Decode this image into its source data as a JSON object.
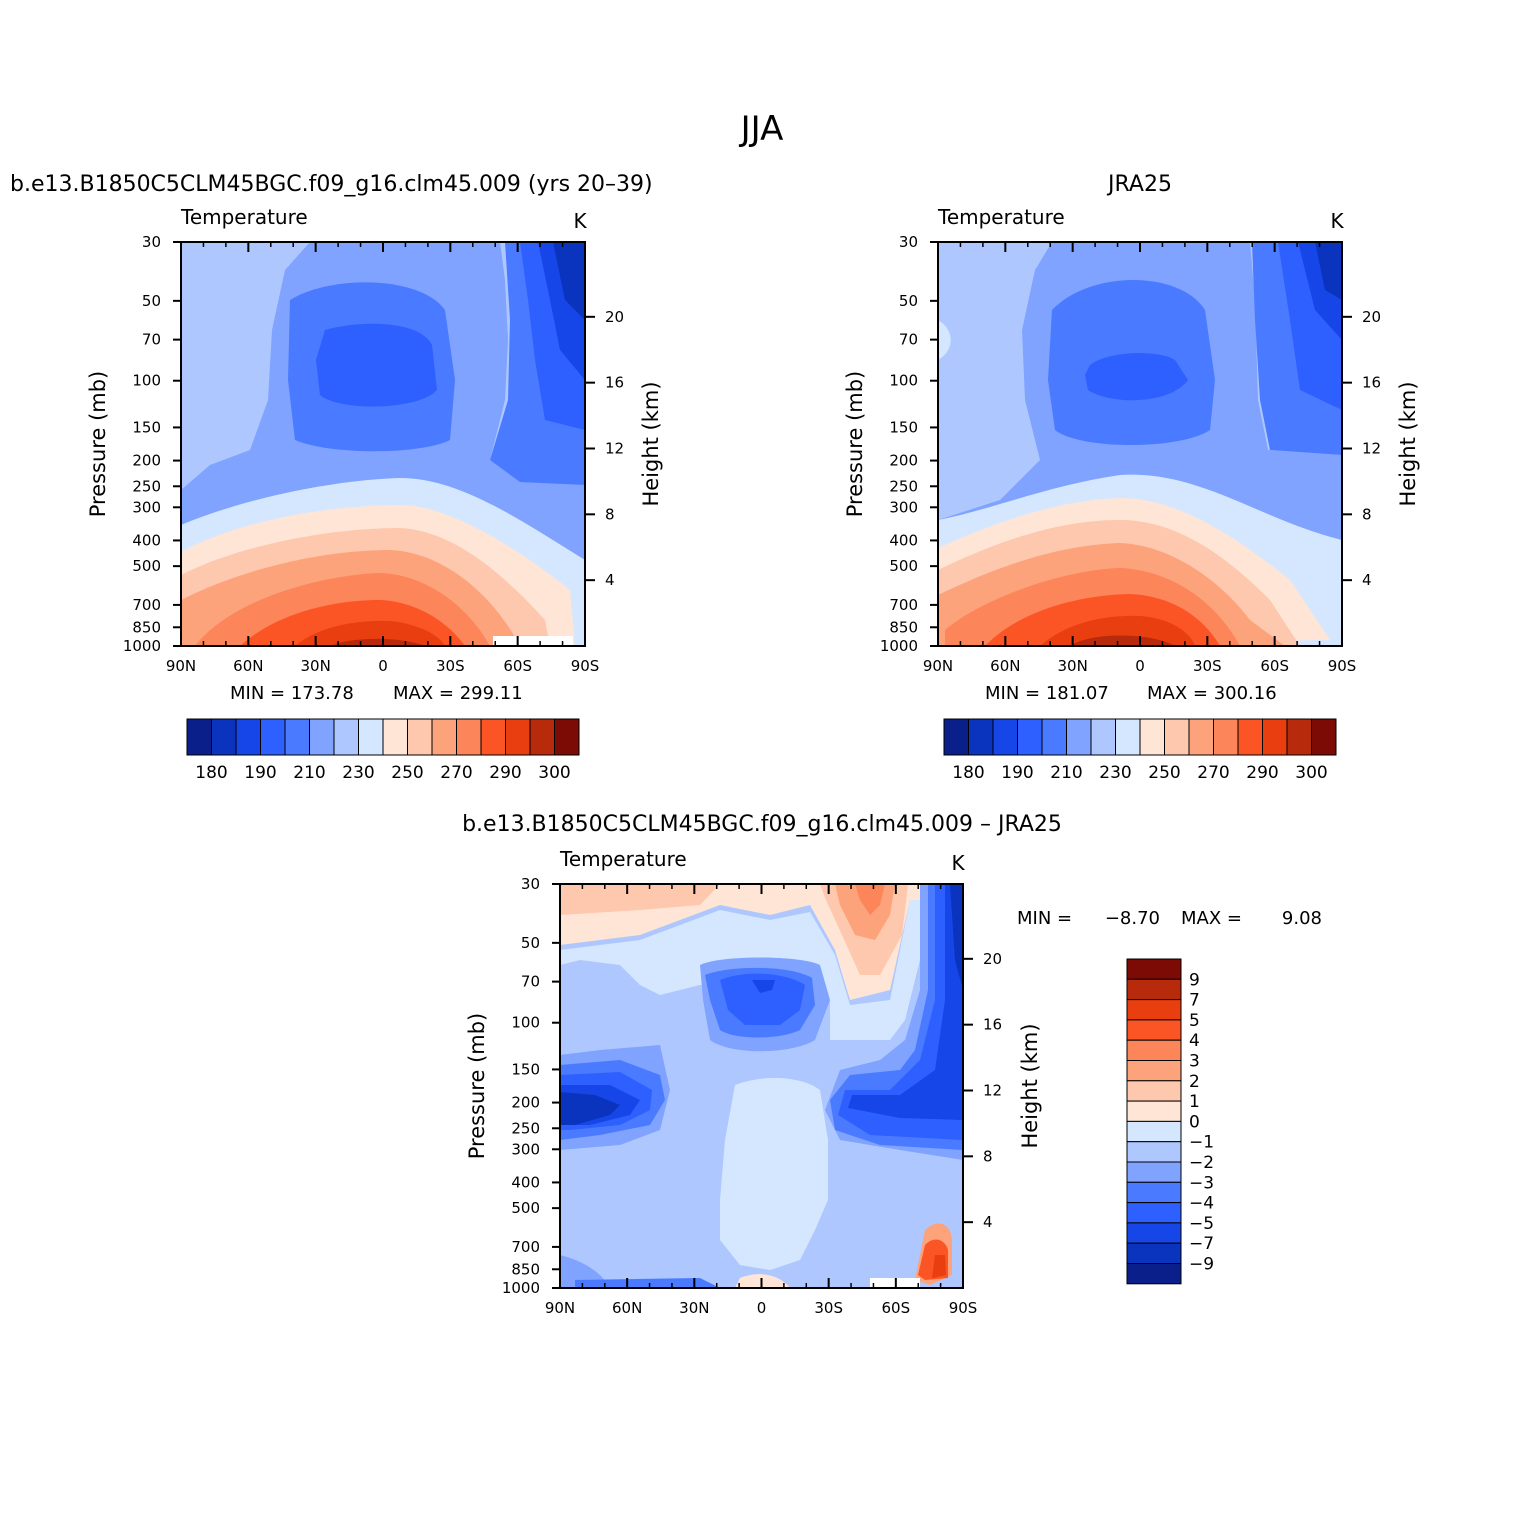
{
  "figure": {
    "title": "JJA"
  },
  "colors": {
    "fill": [
      "#0a1f8a",
      "#0a34bd",
      "#1646e8",
      "#2e5fff",
      "#4a7aff",
      "#7fa3ff",
      "#aec8ff",
      "#d5e7ff",
      "#fee5d6",
      "#fdc8ad",
      "#fda37c",
      "#fc8559",
      "#fb5425",
      "#e83e10",
      "#b82a0c",
      "#7c0a05"
    ]
  },
  "chart_data": [
    {
      "type": "contour",
      "title": "b.e13.B1850C5CLM45BGC.f09_g16.clm45.009 (yrs 20–39)",
      "variable": "Temperature",
      "units": "K",
      "ylabel": "Pressure (mb)",
      "ylabel_right": "Height (km)",
      "x_ticks": [
        "90N",
        "60N",
        "30N",
        "0",
        "30S",
        "60S",
        "90S"
      ],
      "y_ticks": [
        "30",
        "50",
        "70",
        "100",
        "150",
        "200",
        "250",
        "300",
        "400",
        "500",
        "700",
        "850",
        "1000"
      ],
      "y_ticks_right": [
        "20",
        "16",
        "12",
        "8",
        "4"
      ],
      "min_label": "MIN = 173.78",
      "max_label": "MAX = 299.11",
      "min": 173.78,
      "max": 299.11,
      "colorbar_labels": [
        "180",
        "190",
        "210",
        "230",
        "250",
        "270",
        "290",
        "300"
      ],
      "colorbar_orientation": "horizontal",
      "ylim": [
        1000,
        30
      ]
    },
    {
      "type": "contour",
      "title": "JRA25",
      "variable": "Temperature",
      "units": "K",
      "ylabel": "Pressure (mb)",
      "ylabel_right": "Height (km)",
      "x_ticks": [
        "90N",
        "60N",
        "30N",
        "0",
        "30S",
        "60S",
        "90S"
      ],
      "y_ticks": [
        "30",
        "50",
        "70",
        "100",
        "150",
        "200",
        "250",
        "300",
        "400",
        "500",
        "700",
        "850",
        "1000"
      ],
      "y_ticks_right": [
        "20",
        "16",
        "12",
        "8",
        "4"
      ],
      "min_label": "MIN = 181.07",
      "max_label": "MAX = 300.16",
      "min": 181.07,
      "max": 300.16,
      "colorbar_labels": [
        "180",
        "190",
        "210",
        "230",
        "250",
        "270",
        "290",
        "300"
      ],
      "colorbar_orientation": "horizontal",
      "ylim": [
        1000,
        30
      ]
    },
    {
      "type": "contour",
      "title": "b.e13.B1850C5CLM45BGC.f09_g16.clm45.009 – JRA25",
      "variable": "Temperature",
      "units": "K",
      "ylabel": "Pressure (mb)",
      "ylabel_right": "Height (km)",
      "x_ticks": [
        "90N",
        "60N",
        "30N",
        "0",
        "30S",
        "60S",
        "90S"
      ],
      "y_ticks": [
        "30",
        "50",
        "70",
        "100",
        "150",
        "200",
        "250",
        "300",
        "400",
        "500",
        "700",
        "850",
        "1000"
      ],
      "y_ticks_right": [
        "20",
        "16",
        "12",
        "8",
        "4"
      ],
      "min_text": "MIN =",
      "min_value": "−8.70",
      "max_text": "MAX =",
      "max_value": "9.08",
      "min": -8.7,
      "max": 9.08,
      "colorbar_labels": [
        "9",
        "7",
        "5",
        "4",
        "3",
        "2",
        "1",
        "0",
        "−1",
        "−2",
        "−3",
        "−4",
        "−5",
        "−7",
        "−9"
      ],
      "colorbar_orientation": "vertical",
      "ylim": [
        1000,
        30
      ]
    }
  ]
}
